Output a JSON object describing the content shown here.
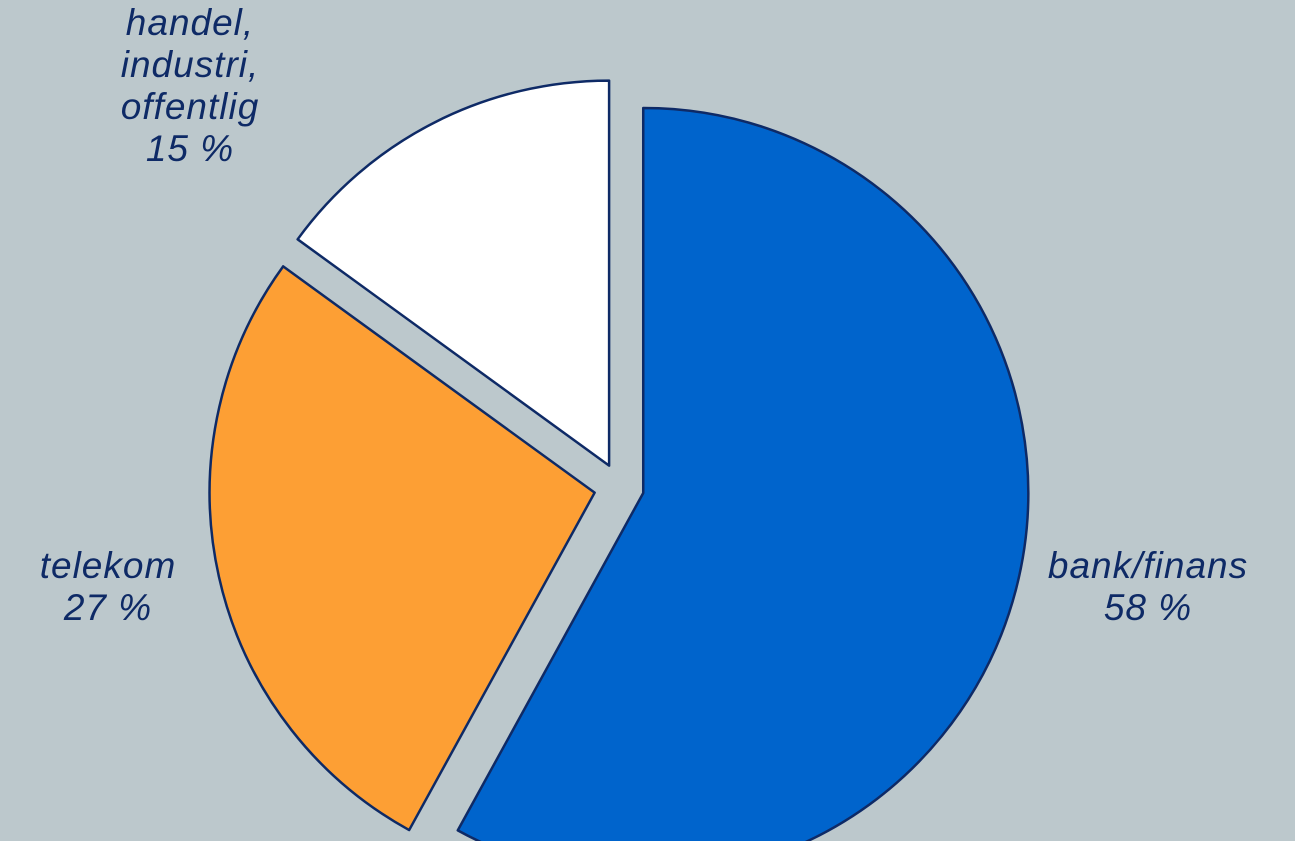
{
  "chart_data": {
    "type": "pie",
    "slices": [
      {
        "label_lines": [
          "bank/finans",
          "58 %"
        ],
        "value": 58,
        "color": "#0064cc"
      },
      {
        "label_lines": [
          "telekom",
          "27 %"
        ],
        "value": 27,
        "color": "#fd9f34"
      },
      {
        "label_lines": [
          "handel,",
          "industri,",
          "offentlig",
          "15 %"
        ],
        "value": 15,
        "color": "#ffffff"
      }
    ],
    "exploded": true,
    "start_angle_deg": 0,
    "direction": "clockwise",
    "title": "",
    "legend": "none"
  }
}
